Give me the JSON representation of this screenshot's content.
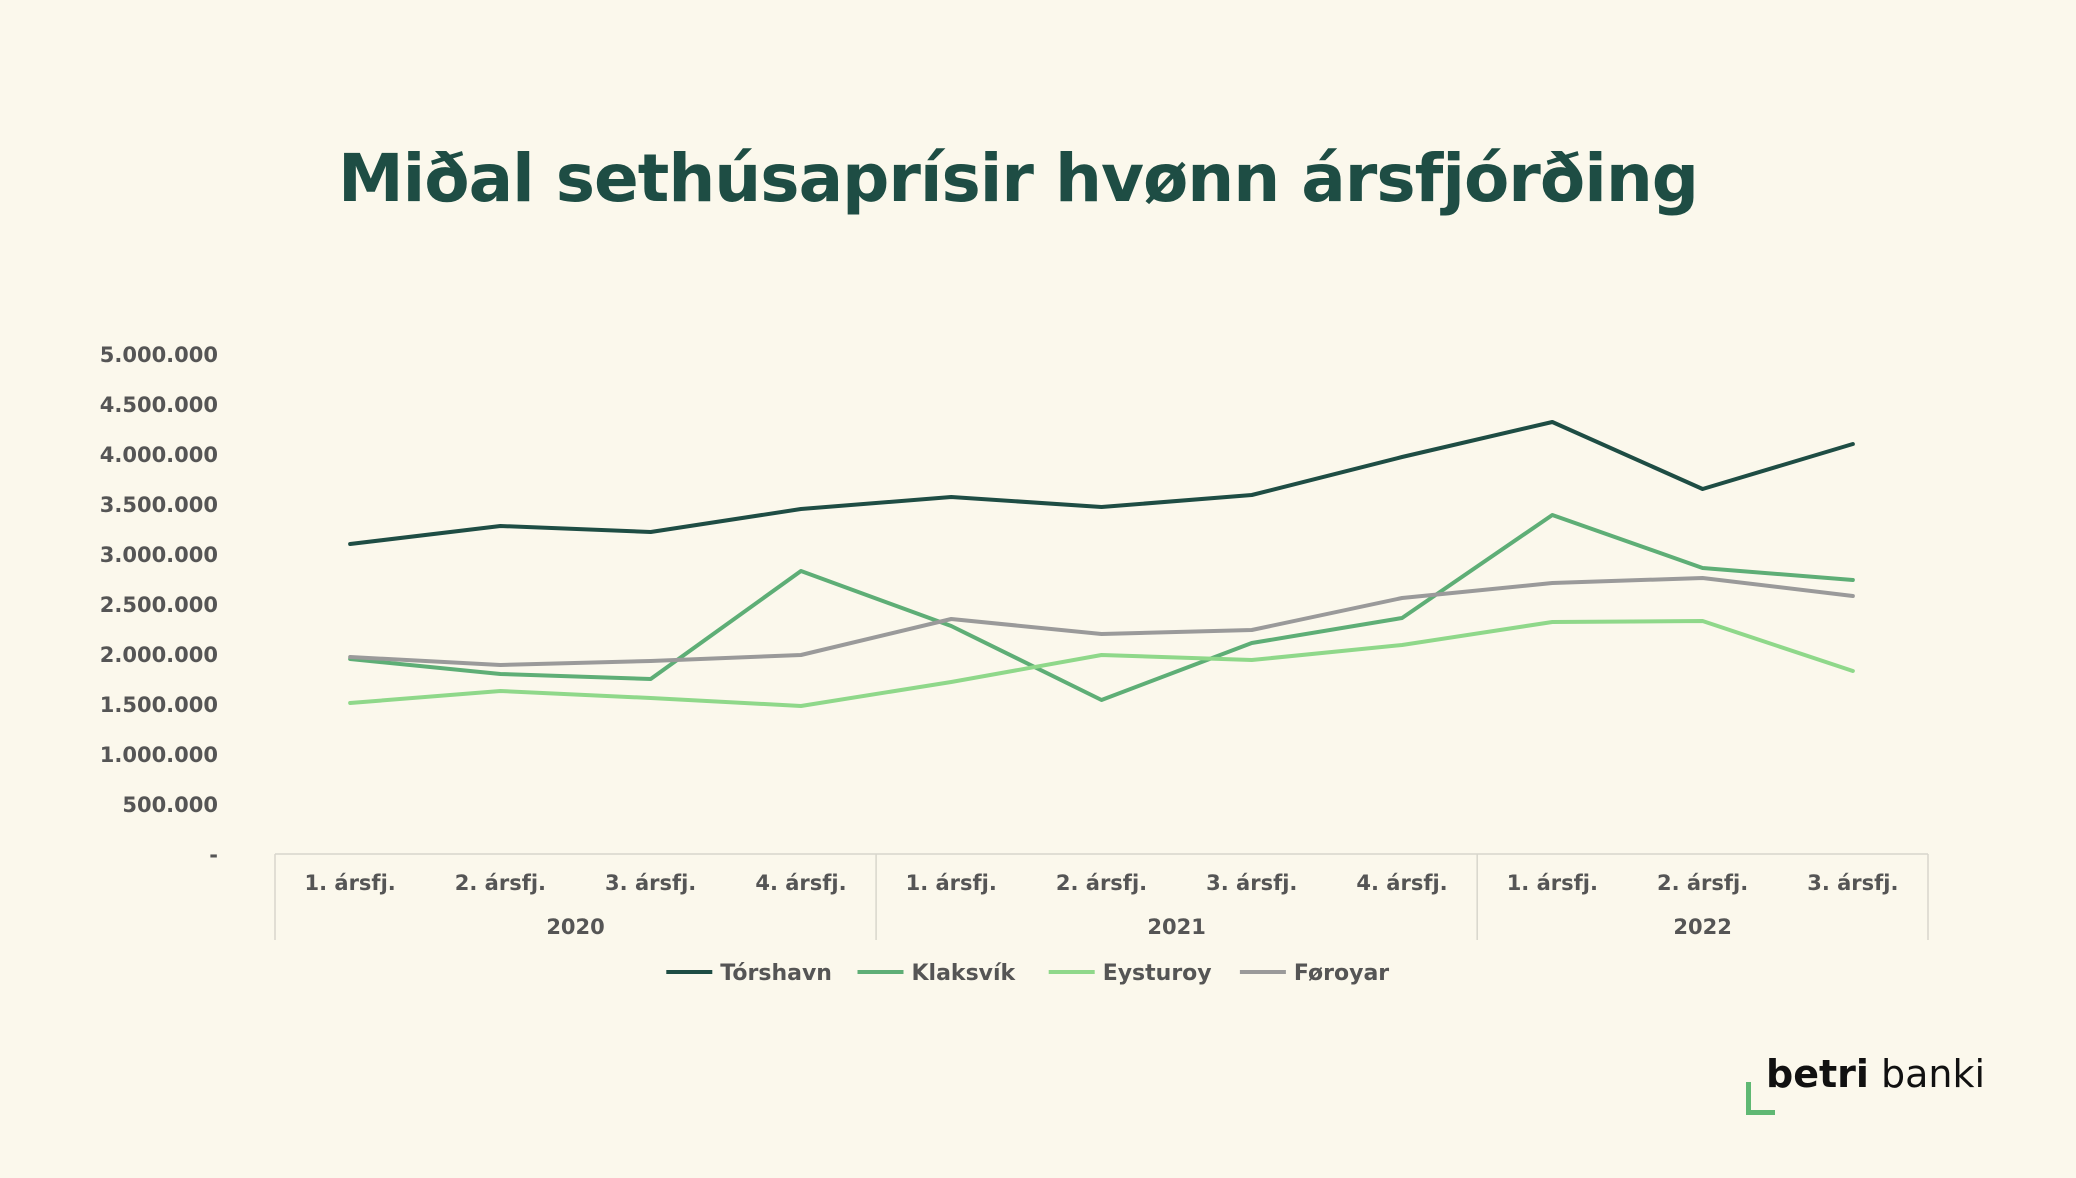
{
  "title": "Miðal sethúsaprísir hvønn ársfjórðing",
  "logo": {
    "word1": "betri",
    "word2": "banki"
  },
  "chart_data": {
    "type": "line",
    "title": "Miðal sethúsaprísir hvønn ársfjórðing",
    "categories": [
      "1. ársfj.",
      "2. ársfj.",
      "3. ársfj.",
      "4. ársfj.",
      "1. ársfj.",
      "2. ársfj.",
      "3. ársfj.",
      "4. ársfj.",
      "1. ársfj.",
      "2. ársfj.",
      "3. ársfj."
    ],
    "groups": [
      {
        "label": "2020",
        "count": 4
      },
      {
        "label": "2021",
        "count": 4
      },
      {
        "label": "2022",
        "count": 3
      }
    ],
    "ylim": [
      0,
      5000000
    ],
    "yticks": [
      0,
      500000,
      1000000,
      1500000,
      2000000,
      2500000,
      3000000,
      3500000,
      4000000,
      4500000,
      5000000
    ],
    "ytick_labels": [
      "-",
      "500.000",
      "1.000.000",
      "1.500.000",
      "2.000.000",
      "2.500.000",
      "3.000.000",
      "3.500.000",
      "4.000.000",
      "4.500.000",
      "5.000.000"
    ],
    "grid": false,
    "legend_position": "bottom",
    "series": [
      {
        "name": "Tórshavn",
        "color": "#1e4d44",
        "values": [
          3100000,
          3280000,
          3220000,
          3450000,
          3570000,
          3470000,
          3590000,
          3970000,
          4320000,
          3650000,
          4100000
        ]
      },
      {
        "name": "Klaksvík",
        "color": "#5eae76",
        "values": [
          1950000,
          1800000,
          1750000,
          2830000,
          2280000,
          1540000,
          2110000,
          2360000,
          3390000,
          2860000,
          2740000
        ]
      },
      {
        "name": "Eysturoy",
        "color": "#8fd88a",
        "values": [
          1510000,
          1630000,
          1560000,
          1480000,
          1720000,
          1990000,
          1940000,
          2090000,
          2320000,
          2330000,
          1830000
        ]
      },
      {
        "name": "Føroyar",
        "color": "#9a9a9a",
        "values": [
          1970000,
          1890000,
          1930000,
          1990000,
          2350000,
          2200000,
          2240000,
          2560000,
          2710000,
          2760000,
          2580000
        ]
      }
    ]
  }
}
